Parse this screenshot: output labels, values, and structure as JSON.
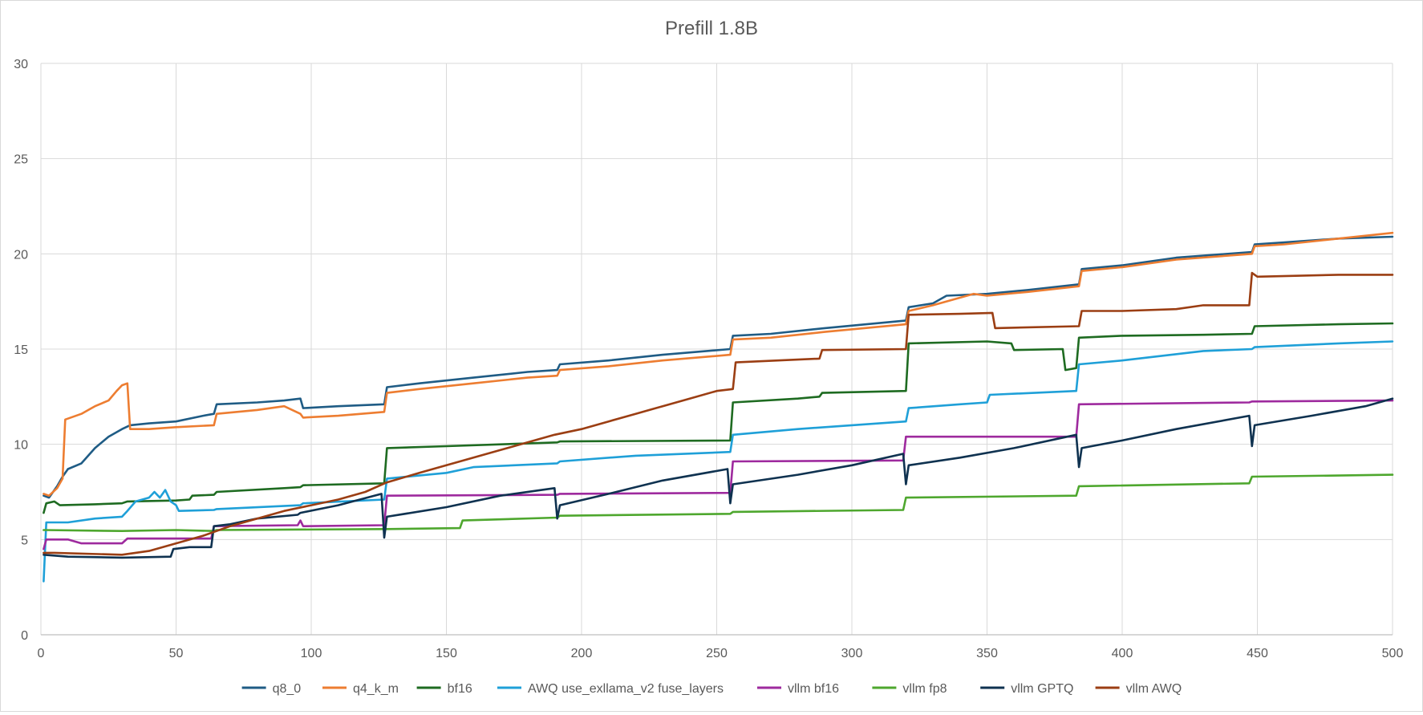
{
  "chart_data": {
    "type": "line",
    "title": "Prefill 1.8B",
    "xlabel": "",
    "ylabel": "",
    "xlim": [
      0,
      500
    ],
    "ylim": [
      0,
      30
    ],
    "x_ticks": [
      "0",
      "50",
      "100",
      "150",
      "200",
      "250",
      "300",
      "350",
      "400",
      "450",
      "500"
    ],
    "y_ticks": [
      "0",
      "5",
      "10",
      "15",
      "20",
      "25",
      "30"
    ],
    "grid": true,
    "legend_position": "bottom",
    "series": [
      {
        "name": "q8_0",
        "color": "#1f5c85",
        "points": [
          [
            1,
            7.3
          ],
          [
            3,
            7.2
          ],
          [
            6,
            7.8
          ],
          [
            8,
            8.3
          ],
          [
            10,
            8.7
          ],
          [
            15,
            9.0
          ],
          [
            20,
            9.8
          ],
          [
            25,
            10.4
          ],
          [
            30,
            10.8
          ],
          [
            33,
            11.0
          ],
          [
            40,
            11.1
          ],
          [
            50,
            11.2
          ],
          [
            60,
            11.5
          ],
          [
            64,
            11.6
          ],
          [
            65,
            12.1
          ],
          [
            80,
            12.2
          ],
          [
            90,
            12.3
          ],
          [
            96,
            12.4
          ],
          [
            97,
            11.9
          ],
          [
            110,
            12.0
          ],
          [
            127,
            12.1
          ],
          [
            128,
            13.0
          ],
          [
            140,
            13.2
          ],
          [
            160,
            13.5
          ],
          [
            180,
            13.8
          ],
          [
            191,
            13.9
          ],
          [
            192,
            14.2
          ],
          [
            210,
            14.4
          ],
          [
            230,
            14.7
          ],
          [
            255,
            15.0
          ],
          [
            256,
            15.7
          ],
          [
            270,
            15.8
          ],
          [
            290,
            16.1
          ],
          [
            320,
            16.5
          ],
          [
            321,
            17.2
          ],
          [
            330,
            17.4
          ],
          [
            335,
            17.8
          ],
          [
            350,
            17.9
          ],
          [
            365,
            18.1
          ],
          [
            384,
            18.4
          ],
          [
            385,
            19.2
          ],
          [
            400,
            19.4
          ],
          [
            420,
            19.8
          ],
          [
            448,
            20.1
          ],
          [
            449,
            20.5
          ],
          [
            460,
            20.6
          ],
          [
            480,
            20.8
          ],
          [
            500,
            20.9
          ]
        ]
      },
      {
        "name": "q4_k_m",
        "color": "#ed7d31",
        "points": [
          [
            1,
            7.4
          ],
          [
            3,
            7.3
          ],
          [
            6,
            7.7
          ],
          [
            8,
            8.2
          ],
          [
            9,
            11.3
          ],
          [
            15,
            11.6
          ],
          [
            20,
            12.0
          ],
          [
            25,
            12.3
          ],
          [
            28,
            12.8
          ],
          [
            30,
            13.1
          ],
          [
            32,
            13.2
          ],
          [
            33,
            10.8
          ],
          [
            40,
            10.8
          ],
          [
            50,
            10.9
          ],
          [
            64,
            11.0
          ],
          [
            65,
            11.6
          ],
          [
            80,
            11.8
          ],
          [
            90,
            12.0
          ],
          [
            96,
            11.6
          ],
          [
            97,
            11.4
          ],
          [
            110,
            11.5
          ],
          [
            127,
            11.7
          ],
          [
            128,
            12.7
          ],
          [
            140,
            12.9
          ],
          [
            160,
            13.2
          ],
          [
            180,
            13.5
          ],
          [
            191,
            13.6
          ],
          [
            192,
            13.9
          ],
          [
            210,
            14.1
          ],
          [
            230,
            14.4
          ],
          [
            255,
            14.7
          ],
          [
            256,
            15.5
          ],
          [
            270,
            15.6
          ],
          [
            290,
            15.9
          ],
          [
            320,
            16.3
          ],
          [
            321,
            17.0
          ],
          [
            330,
            17.3
          ],
          [
            345,
            17.9
          ],
          [
            350,
            17.8
          ],
          [
            365,
            18.0
          ],
          [
            384,
            18.3
          ],
          [
            385,
            19.1
          ],
          [
            400,
            19.3
          ],
          [
            420,
            19.7
          ],
          [
            448,
            20.0
          ],
          [
            449,
            20.4
          ],
          [
            460,
            20.5
          ],
          [
            480,
            20.8
          ],
          [
            500,
            21.1
          ]
        ]
      },
      {
        "name": "bf16",
        "color": "#1e6b21",
        "points": [
          [
            1,
            6.4
          ],
          [
            2,
            6.9
          ],
          [
            5,
            7.0
          ],
          [
            7,
            6.8
          ],
          [
            20,
            6.85
          ],
          [
            30,
            6.9
          ],
          [
            32,
            7.0
          ],
          [
            50,
            7.05
          ],
          [
            55,
            7.1
          ],
          [
            56,
            7.3
          ],
          [
            64,
            7.35
          ],
          [
            65,
            7.5
          ],
          [
            90,
            7.7
          ],
          [
            96,
            7.75
          ],
          [
            97,
            7.85
          ],
          [
            127,
            7.95
          ],
          [
            128,
            9.8
          ],
          [
            150,
            9.9
          ],
          [
            191,
            10.1
          ],
          [
            192,
            10.15
          ],
          [
            255,
            10.2
          ],
          [
            256,
            12.2
          ],
          [
            280,
            12.4
          ],
          [
            288,
            12.5
          ],
          [
            289,
            12.7
          ],
          [
            320,
            12.8
          ],
          [
            321,
            15.3
          ],
          [
            350,
            15.4
          ],
          [
            359,
            15.3
          ],
          [
            360,
            14.95
          ],
          [
            378,
            15.0
          ],
          [
            379,
            13.9
          ],
          [
            383,
            14.0
          ],
          [
            384,
            15.6
          ],
          [
            400,
            15.7
          ],
          [
            430,
            15.75
          ],
          [
            448,
            15.8
          ],
          [
            449,
            16.2
          ],
          [
            480,
            16.3
          ],
          [
            500,
            16.35
          ]
        ]
      },
      {
        "name": "AWQ use_exllama_v2 fuse_layers",
        "color": "#1fa0d8",
        "points": [
          [
            1,
            2.8
          ],
          [
            2,
            5.9
          ],
          [
            10,
            5.9
          ],
          [
            20,
            6.1
          ],
          [
            30,
            6.2
          ],
          [
            32,
            6.5
          ],
          [
            35,
            7.0
          ],
          [
            40,
            7.2
          ],
          [
            42,
            7.5
          ],
          [
            44,
            7.2
          ],
          [
            46,
            7.6
          ],
          [
            48,
            7.0
          ],
          [
            50,
            6.8
          ],
          [
            51,
            6.5
          ],
          [
            64,
            6.55
          ],
          [
            65,
            6.6
          ],
          [
            96,
            6.8
          ],
          [
            97,
            6.9
          ],
          [
            127,
            7.1
          ],
          [
            128,
            8.2
          ],
          [
            150,
            8.5
          ],
          [
            160,
            8.8
          ],
          [
            191,
            9.0
          ],
          [
            192,
            9.1
          ],
          [
            220,
            9.4
          ],
          [
            255,
            9.6
          ],
          [
            256,
            10.5
          ],
          [
            280,
            10.8
          ],
          [
            300,
            11.0
          ],
          [
            320,
            11.2
          ],
          [
            321,
            11.9
          ],
          [
            340,
            12.1
          ],
          [
            350,
            12.2
          ],
          [
            351,
            12.6
          ],
          [
            383,
            12.8
          ],
          [
            384,
            14.2
          ],
          [
            400,
            14.4
          ],
          [
            430,
            14.9
          ],
          [
            448,
            15.0
          ],
          [
            449,
            15.1
          ],
          [
            480,
            15.3
          ],
          [
            500,
            15.4
          ]
        ]
      },
      {
        "name": "vllm bf16",
        "color": "#9e2a9e",
        "points": [
          [
            1,
            4.5
          ],
          [
            2,
            5.0
          ],
          [
            10,
            5.0
          ],
          [
            15,
            4.8
          ],
          [
            30,
            4.8
          ],
          [
            32,
            5.05
          ],
          [
            63,
            5.05
          ],
          [
            64,
            5.7
          ],
          [
            95,
            5.75
          ],
          [
            96,
            6.0
          ],
          [
            97,
            5.7
          ],
          [
            127,
            5.75
          ],
          [
            128,
            7.3
          ],
          [
            191,
            7.35
          ],
          [
            192,
            7.4
          ],
          [
            255,
            7.45
          ],
          [
            256,
            9.1
          ],
          [
            319,
            9.15
          ],
          [
            320,
            10.4
          ],
          [
            383,
            10.4
          ],
          [
            384,
            12.1
          ],
          [
            447,
            12.2
          ],
          [
            448,
            12.25
          ],
          [
            500,
            12.3
          ]
        ]
      },
      {
        "name": "vllm fp8",
        "color": "#4ea72e",
        "points": [
          [
            1,
            5.5
          ],
          [
            30,
            5.45
          ],
          [
            50,
            5.5
          ],
          [
            64,
            5.45
          ],
          [
            65,
            5.5
          ],
          [
            127,
            5.55
          ],
          [
            128,
            5.55
          ],
          [
            155,
            5.6
          ],
          [
            156,
            6.0
          ],
          [
            191,
            6.15
          ],
          [
            192,
            6.25
          ],
          [
            255,
            6.35
          ],
          [
            256,
            6.45
          ],
          [
            319,
            6.55
          ],
          [
            320,
            7.2
          ],
          [
            383,
            7.3
          ],
          [
            384,
            7.8
          ],
          [
            447,
            7.95
          ],
          [
            448,
            8.3
          ],
          [
            500,
            8.4
          ]
        ]
      },
      {
        "name": "vllm GPTQ",
        "color": "#0f3250",
        "points": [
          [
            1,
            4.2
          ],
          [
            10,
            4.1
          ],
          [
            30,
            4.05
          ],
          [
            48,
            4.1
          ],
          [
            49,
            4.5
          ],
          [
            55,
            4.6
          ],
          [
            63,
            4.6
          ],
          [
            64,
            5.7
          ],
          [
            70,
            5.8
          ],
          [
            80,
            6.1
          ],
          [
            95,
            6.3
          ],
          [
            96,
            6.4
          ],
          [
            110,
            6.8
          ],
          [
            126,
            7.4
          ],
          [
            127,
            5.1
          ],
          [
            128,
            6.2
          ],
          [
            150,
            6.7
          ],
          [
            170,
            7.3
          ],
          [
            190,
            7.7
          ],
          [
            191,
            6.1
          ],
          [
            192,
            6.8
          ],
          [
            210,
            7.4
          ],
          [
            230,
            8.1
          ],
          [
            254,
            8.7
          ],
          [
            255,
            6.9
          ],
          [
            256,
            7.9
          ],
          [
            280,
            8.4
          ],
          [
            300,
            8.9
          ],
          [
            319,
            9.5
          ],
          [
            320,
            7.9
          ],
          [
            321,
            8.9
          ],
          [
            340,
            9.3
          ],
          [
            360,
            9.8
          ],
          [
            383,
            10.5
          ],
          [
            384,
            8.8
          ],
          [
            385,
            9.8
          ],
          [
            400,
            10.2
          ],
          [
            420,
            10.8
          ],
          [
            447,
            11.5
          ],
          [
            448,
            9.9
          ],
          [
            449,
            11.0
          ],
          [
            470,
            11.5
          ],
          [
            490,
            12.0
          ],
          [
            500,
            12.4
          ]
        ]
      },
      {
        "name": "vllm AWQ",
        "color": "#9b3e13",
        "points": [
          [
            1,
            4.3
          ],
          [
            5,
            4.3
          ],
          [
            30,
            4.2
          ],
          [
            40,
            4.4
          ],
          [
            50,
            4.8
          ],
          [
            60,
            5.2
          ],
          [
            70,
            5.7
          ],
          [
            80,
            6.1
          ],
          [
            90,
            6.5
          ],
          [
            100,
            6.8
          ],
          [
            110,
            7.1
          ],
          [
            120,
            7.5
          ],
          [
            128,
            8.0
          ],
          [
            140,
            8.5
          ],
          [
            150,
            8.9
          ],
          [
            160,
            9.3
          ],
          [
            170,
            9.7
          ],
          [
            180,
            10.1
          ],
          [
            190,
            10.5
          ],
          [
            200,
            10.8
          ],
          [
            210,
            11.2
          ],
          [
            220,
            11.6
          ],
          [
            230,
            12.0
          ],
          [
            240,
            12.4
          ],
          [
            250,
            12.8
          ],
          [
            256,
            12.9
          ],
          [
            257,
            14.3
          ],
          [
            280,
            14.45
          ],
          [
            288,
            14.5
          ],
          [
            289,
            14.95
          ],
          [
            320,
            15.0
          ],
          [
            321,
            16.8
          ],
          [
            340,
            16.85
          ],
          [
            352,
            16.9
          ],
          [
            353,
            16.1
          ],
          [
            384,
            16.2
          ],
          [
            385,
            17.0
          ],
          [
            400,
            17.0
          ],
          [
            420,
            17.1
          ],
          [
            430,
            17.3
          ],
          [
            447,
            17.3
          ],
          [
            448,
            19.0
          ],
          [
            450,
            18.8
          ],
          [
            480,
            18.9
          ],
          [
            500,
            18.9
          ]
        ]
      }
    ]
  }
}
